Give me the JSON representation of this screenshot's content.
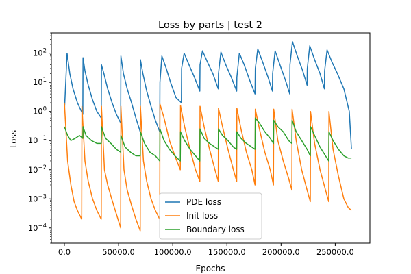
{
  "chart_data": {
    "type": "line",
    "title": "Loss by parts | test 2",
    "xlabel": "Epochs",
    "ylabel": "Loss",
    "xlim": [
      -12000,
      282000
    ],
    "ylim": [
      3e-05,
      500
    ],
    "yscale": "log",
    "grid": false,
    "legend_position": "lower-center",
    "x_ticks": [
      0,
      50000,
      100000,
      150000,
      200000,
      250000
    ],
    "x_tick_labels": [
      "0.0",
      "50000.0",
      "100000.0",
      "150000.0",
      "200000.0",
      "250000.0"
    ],
    "y_ticks": [
      0.0001,
      0.001,
      0.01,
      0.1,
      1,
      10,
      100
    ],
    "y_tick_labels": [
      {
        "base": "10",
        "exp": "−4"
      },
      {
        "base": "10",
        "exp": "−3"
      },
      {
        "base": "10",
        "exp": "−2"
      },
      {
        "base": "10",
        "exp": "−1"
      },
      {
        "base": "10",
        "exp": "0"
      },
      {
        "base": "10",
        "exp": "1"
      },
      {
        "base": "10",
        "exp": "2"
      }
    ],
    "series": [
      {
        "name": "PDE loss",
        "color": "#1f77b4",
        "x": [
          0,
          2500,
          5000,
          8000,
          12000,
          17000,
          17200,
          19000,
          22000,
          26000,
          30000,
          34000,
          34200,
          36500,
          40000,
          44000,
          48000,
          52000,
          52200,
          54500,
          58000,
          62000,
          66000,
          70000,
          70200,
          72500,
          76000,
          80000,
          84000,
          88000,
          88200,
          90000,
          94000,
          98000,
          103000,
          108000,
          108200,
          110500,
          115000,
          120000,
          125000,
          125200,
          127500,
          132000,
          137000,
          142000,
          142200,
          144500,
          149000,
          154000,
          159000,
          159200,
          161500,
          166000,
          171000,
          176000,
          176200,
          178500,
          183000,
          188000,
          192000,
          192200,
          194500,
          199000,
          204000,
          208000,
          208200,
          210500,
          215000,
          220000,
          224000,
          224200,
          226500,
          231000,
          236000,
          240000,
          240200,
          242500,
          247000,
          252000,
          258000,
          263000,
          265000
        ],
        "y": [
          1,
          100,
          20,
          6,
          2,
          0.8,
          70,
          25,
          8,
          2.5,
          1,
          0.6,
          40,
          20,
          6,
          2,
          0.8,
          0.4,
          80,
          20,
          6,
          2,
          0.6,
          0.2,
          60,
          20,
          5,
          1.5,
          0.5,
          0.2,
          10,
          80,
          30,
          10,
          3,
          2,
          30,
          100,
          40,
          15,
          5,
          40,
          120,
          50,
          20,
          6,
          20,
          110,
          40,
          15,
          5,
          15,
          100,
          40,
          12,
          4,
          30,
          140,
          50,
          15,
          5,
          20,
          120,
          40,
          12,
          4,
          40,
          250,
          80,
          25,
          8,
          30,
          180,
          60,
          20,
          6,
          25,
          130,
          50,
          20,
          6,
          1,
          0.05
        ]
      },
      {
        "name": "Init loss",
        "color": "#ff7f0e",
        "x": [
          0,
          3000,
          6000,
          9000,
          12000,
          16000,
          16200,
          19000,
          22000,
          26000,
          30000,
          34000,
          34200,
          37000,
          40000,
          44000,
          48000,
          52000,
          52200,
          55000,
          58000,
          62000,
          66000,
          70000,
          70200,
          73000,
          76000,
          80000,
          84000,
          88000,
          88200,
          92000,
          97000,
          102000,
          107000,
          107200,
          111000,
          116000,
          121000,
          125000,
          125200,
          129000,
          134000,
          139000,
          142000,
          142200,
          146000,
          151000,
          156000,
          159000,
          159200,
          163000,
          168000,
          173000,
          176000,
          176200,
          180000,
          185000,
          190000,
          193000,
          193200,
          197000,
          202000,
          207000,
          210000,
          210200,
          214000,
          219000,
          224000,
          227000,
          227200,
          231000,
          236000,
          241000,
          244000,
          244200,
          248000,
          253000,
          258000,
          262000,
          265000
        ],
        "y": [
          2,
          0.02,
          0.003,
          0.0008,
          0.0004,
          0.0002,
          1.5,
          0.02,
          0.004,
          0.001,
          0.0004,
          0.0002,
          1.5,
          0.01,
          0.003,
          0.0009,
          0.0003,
          0.0001,
          1.5,
          0.01,
          0.002,
          0.0006,
          0.0002,
          8e-05,
          1.5,
          0.02,
          0.004,
          0.001,
          0.0004,
          0.0002,
          1.8,
          0.6,
          0.1,
          0.03,
          0.01,
          1.6,
          0.3,
          0.05,
          0.01,
          0.004,
          1.5,
          0.3,
          0.05,
          0.01,
          0.004,
          1.3,
          0.3,
          0.05,
          0.01,
          0.004,
          1.3,
          0.25,
          0.04,
          0.01,
          0.003,
          1.2,
          0.25,
          0.04,
          0.01,
          0.003,
          1.2,
          0.1,
          0.02,
          0.005,
          0.002,
          1.2,
          0.1,
          0.01,
          0.002,
          0.0008,
          1,
          0.08,
          0.01,
          0.002,
          0.0008,
          1,
          0.05,
          0.006,
          0.001,
          0.0005,
          0.0004
        ]
      },
      {
        "name": "Boundary loss",
        "color": "#2ca02c",
        "x": [
          0,
          3000,
          6000,
          10000,
          14000,
          17000,
          17200,
          20000,
          25000,
          30000,
          34000,
          34200,
          38000,
          43000,
          48000,
          52000,
          52200,
          56000,
          61000,
          66000,
          70000,
          70200,
          74000,
          79000,
          84000,
          88000,
          88200,
          92000,
          97000,
          102000,
          107000,
          107200,
          111000,
          116000,
          121000,
          125000,
          125200,
          129000,
          134000,
          139000,
          142000,
          142200,
          146000,
          151000,
          156000,
          159000,
          159200,
          163000,
          168000,
          173000,
          176000,
          176200,
          180000,
          185000,
          190000,
          193000,
          193200,
          197000,
          202000,
          207000,
          210000,
          210200,
          214000,
          219000,
          224000,
          227000,
          227200,
          231000,
          236000,
          241000,
          244000,
          244200,
          248000,
          253000,
          258000,
          262000,
          265000
        ],
        "y": [
          0.3,
          0.15,
          0.1,
          0.12,
          0.15,
          0.12,
          0.3,
          0.15,
          0.1,
          0.08,
          0.08,
          0.3,
          0.12,
          0.08,
          0.05,
          0.04,
          0.15,
          0.06,
          0.04,
          0.03,
          0.03,
          0.2,
          0.08,
          0.04,
          0.03,
          0.02,
          0.25,
          0.1,
          0.05,
          0.03,
          0.02,
          0.2,
          0.1,
          0.05,
          0.03,
          0.02,
          0.25,
          0.12,
          0.08,
          0.06,
          0.05,
          0.25,
          0.15,
          0.1,
          0.06,
          0.05,
          0.2,
          0.12,
          0.08,
          0.06,
          0.05,
          0.6,
          0.4,
          0.2,
          0.12,
          0.08,
          0.5,
          0.3,
          0.2,
          0.1,
          0.08,
          0.5,
          0.2,
          0.1,
          0.05,
          0.03,
          0.3,
          0.15,
          0.06,
          0.03,
          0.02,
          0.2,
          0.1,
          0.05,
          0.03,
          0.025,
          0.025
        ]
      }
    ]
  }
}
